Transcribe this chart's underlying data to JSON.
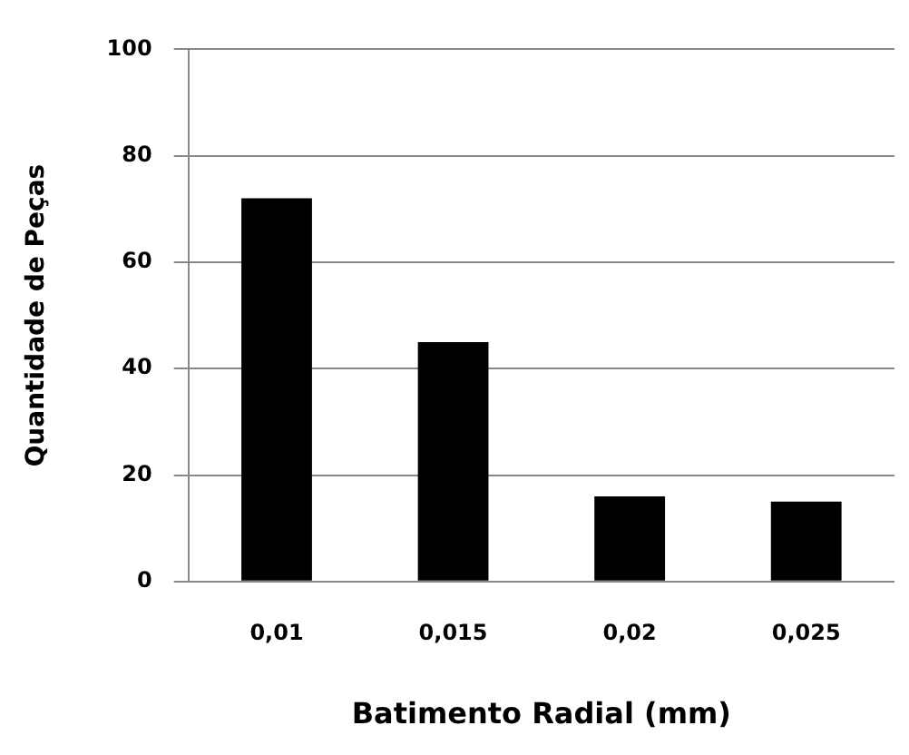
{
  "chart_data": {
    "type": "bar",
    "xlabel": "Batimento Radial (mm)",
    "ylabel": "Quantidade de Peças",
    "categories": [
      "0,01",
      "0,015",
      "0,02",
      "0,025"
    ],
    "values": [
      72,
      45,
      16,
      15
    ],
    "color": "#000000",
    "ylim": [
      0,
      100
    ],
    "yticks": [
      0,
      20,
      40,
      60,
      80,
      100
    ],
    "grid": "y",
    "legend": false
  }
}
